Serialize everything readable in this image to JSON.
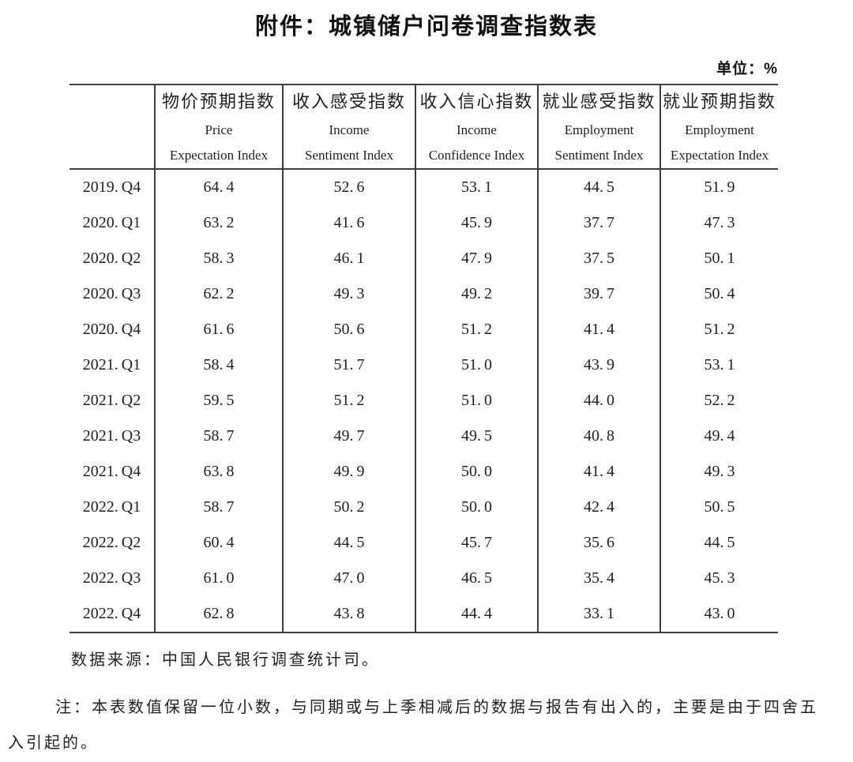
{
  "title": "附件：城镇储户问卷调查指数表",
  "unit_label": "单位：%",
  "table": {
    "columns": [
      {
        "zh": "",
        "en1": "",
        "en2": ""
      },
      {
        "zh": "物价预期指数",
        "en1": "Price",
        "en2": "Expectation Index"
      },
      {
        "zh": "收入感受指数",
        "en1": "Income",
        "en2": "Sentiment Index"
      },
      {
        "zh": "收入信心指数",
        "en1": "Income",
        "en2": "Confidence Index"
      },
      {
        "zh": "就业感受指数",
        "en1": "Employment",
        "en2": "Sentiment Index"
      },
      {
        "zh": "就业预期指数",
        "en1": "Employment",
        "en2": "Expectation Index"
      }
    ],
    "rows": [
      {
        "period": "2019.Q4",
        "values": [
          "64.4",
          "52.6",
          "53.1",
          "44.5",
          "51.9"
        ]
      },
      {
        "period": "2020.Q1",
        "values": [
          "63.2",
          "41.6",
          "45.9",
          "37.7",
          "47.3"
        ]
      },
      {
        "period": "2020.Q2",
        "values": [
          "58.3",
          "46.1",
          "47.9",
          "37.5",
          "50.1"
        ]
      },
      {
        "period": "2020.Q3",
        "values": [
          "62.2",
          "49.3",
          "49.2",
          "39.7",
          "50.4"
        ]
      },
      {
        "period": "2020.Q4",
        "values": [
          "61.6",
          "50.6",
          "51.2",
          "41.4",
          "51.2"
        ]
      },
      {
        "period": "2021.Q1",
        "values": [
          "58.4",
          "51.7",
          "51.0",
          "43.9",
          "53.1"
        ]
      },
      {
        "period": "2021.Q2",
        "values": [
          "59.5",
          "51.2",
          "51.0",
          "44.0",
          "52.2"
        ]
      },
      {
        "period": "2021.Q3",
        "values": [
          "58.7",
          "49.7",
          "49.5",
          "40.8",
          "49.4"
        ]
      },
      {
        "period": "2021.Q4",
        "values": [
          "63.8",
          "49.9",
          "50.0",
          "41.4",
          "49.3"
        ]
      },
      {
        "period": "2022.Q1",
        "values": [
          "58.7",
          "50.2",
          "50.0",
          "42.4",
          "50.5"
        ]
      },
      {
        "period": "2022.Q2",
        "values": [
          "60.4",
          "44.5",
          "45.7",
          "35.6",
          "44.5"
        ]
      },
      {
        "period": "2022.Q3",
        "values": [
          "61.0",
          "47.0",
          "46.5",
          "35.4",
          "45.3"
        ]
      },
      {
        "period": "2022.Q4",
        "values": [
          "62.8",
          "43.8",
          "44.4",
          "33.1",
          "43.0"
        ]
      }
    ]
  },
  "source": "数据来源：中国人民银行调查统计司。",
  "note_lines": [
    "注：本表数值保留一位小数，与同期或与上季相减后的数据与报告有出入的，主要是由于四舍五",
    "入引起的。"
  ]
}
